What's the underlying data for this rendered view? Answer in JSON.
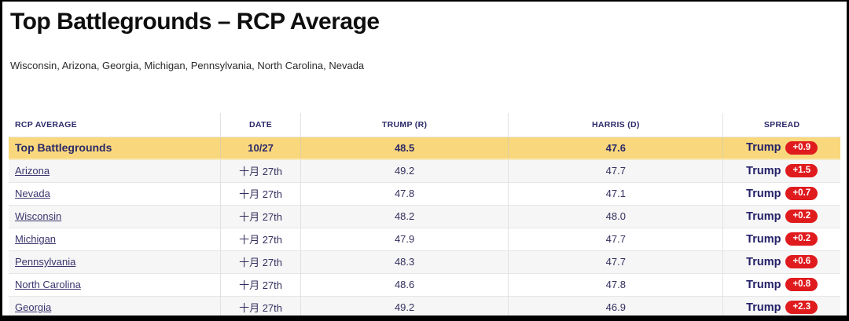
{
  "page": {
    "title": "Top Battlegrounds – RCP Average",
    "subtitle": "Wisconsin, Arizona, Georgia, Michigan, Pennsylvania, North Carolina, Nevada"
  },
  "colors": {
    "highlight_row": "#F9D77C",
    "badge_red": "#E01B1E",
    "header_text": "#2B2969",
    "link_text": "#3A356E"
  },
  "table": {
    "columns": [
      "RCP AVERAGE",
      "DATE",
      "TRUMP (R)",
      "HARRIS (D)",
      "SPREAD"
    ],
    "rows": [
      {
        "name": "Top Battlegrounds",
        "date": "10/27",
        "trump": "48.5",
        "harris": "47.6",
        "spread_label": "Trump",
        "spread_value": "+0.9"
      },
      {
        "name": "Arizona",
        "date": "十月 27th",
        "trump": "49.2",
        "harris": "47.7",
        "spread_label": "Trump",
        "spread_value": "+1.5"
      },
      {
        "name": "Nevada",
        "date": "十月 27th",
        "trump": "47.8",
        "harris": "47.1",
        "spread_label": "Trump",
        "spread_value": "+0.7"
      },
      {
        "name": "Wisconsin",
        "date": "十月 27th",
        "trump": "48.2",
        "harris": "48.0",
        "spread_label": "Trump",
        "spread_value": "+0.2"
      },
      {
        "name": "Michigan",
        "date": "十月 27th",
        "trump": "47.9",
        "harris": "47.7",
        "spread_label": "Trump",
        "spread_value": "+0.2"
      },
      {
        "name": "Pennsylvania",
        "date": "十月 27th",
        "trump": "48.3",
        "harris": "47.7",
        "spread_label": "Trump",
        "spread_value": "+0.6"
      },
      {
        "name": "North Carolina",
        "date": "十月 27th",
        "trump": "48.6",
        "harris": "47.8",
        "spread_label": "Trump",
        "spread_value": "+0.8"
      },
      {
        "name": "Georgia",
        "date": "十月 27th",
        "trump": "49.2",
        "harris": "46.9",
        "spread_label": "Trump",
        "spread_value": "+2.3"
      }
    ]
  },
  "chart_data": {
    "type": "table",
    "title": "Top Battlegrounds – RCP Average",
    "columns": [
      "RCP AVERAGE",
      "DATE",
      "TRUMP (R)",
      "HARRIS (D)",
      "SPREAD"
    ],
    "rows": [
      [
        "Top Battlegrounds",
        "10/27",
        48.5,
        47.6,
        "Trump +0.9"
      ],
      [
        "Arizona",
        "十月 27th",
        49.2,
        47.7,
        "Trump +1.5"
      ],
      [
        "Nevada",
        "十月 27th",
        47.8,
        47.1,
        "Trump +0.7"
      ],
      [
        "Wisconsin",
        "十月 27th",
        48.2,
        48.0,
        "Trump +0.2"
      ],
      [
        "Michigan",
        "十月 27th",
        47.9,
        47.7,
        "Trump +0.2"
      ],
      [
        "Pennsylvania",
        "十月 27th",
        48.3,
        47.7,
        "Trump +0.6"
      ],
      [
        "North Carolina",
        "十月 27th",
        48.6,
        47.8,
        "Trump +0.8"
      ],
      [
        "Georgia",
        "十月 27th",
        49.2,
        46.9,
        "Trump +2.3"
      ]
    ]
  }
}
